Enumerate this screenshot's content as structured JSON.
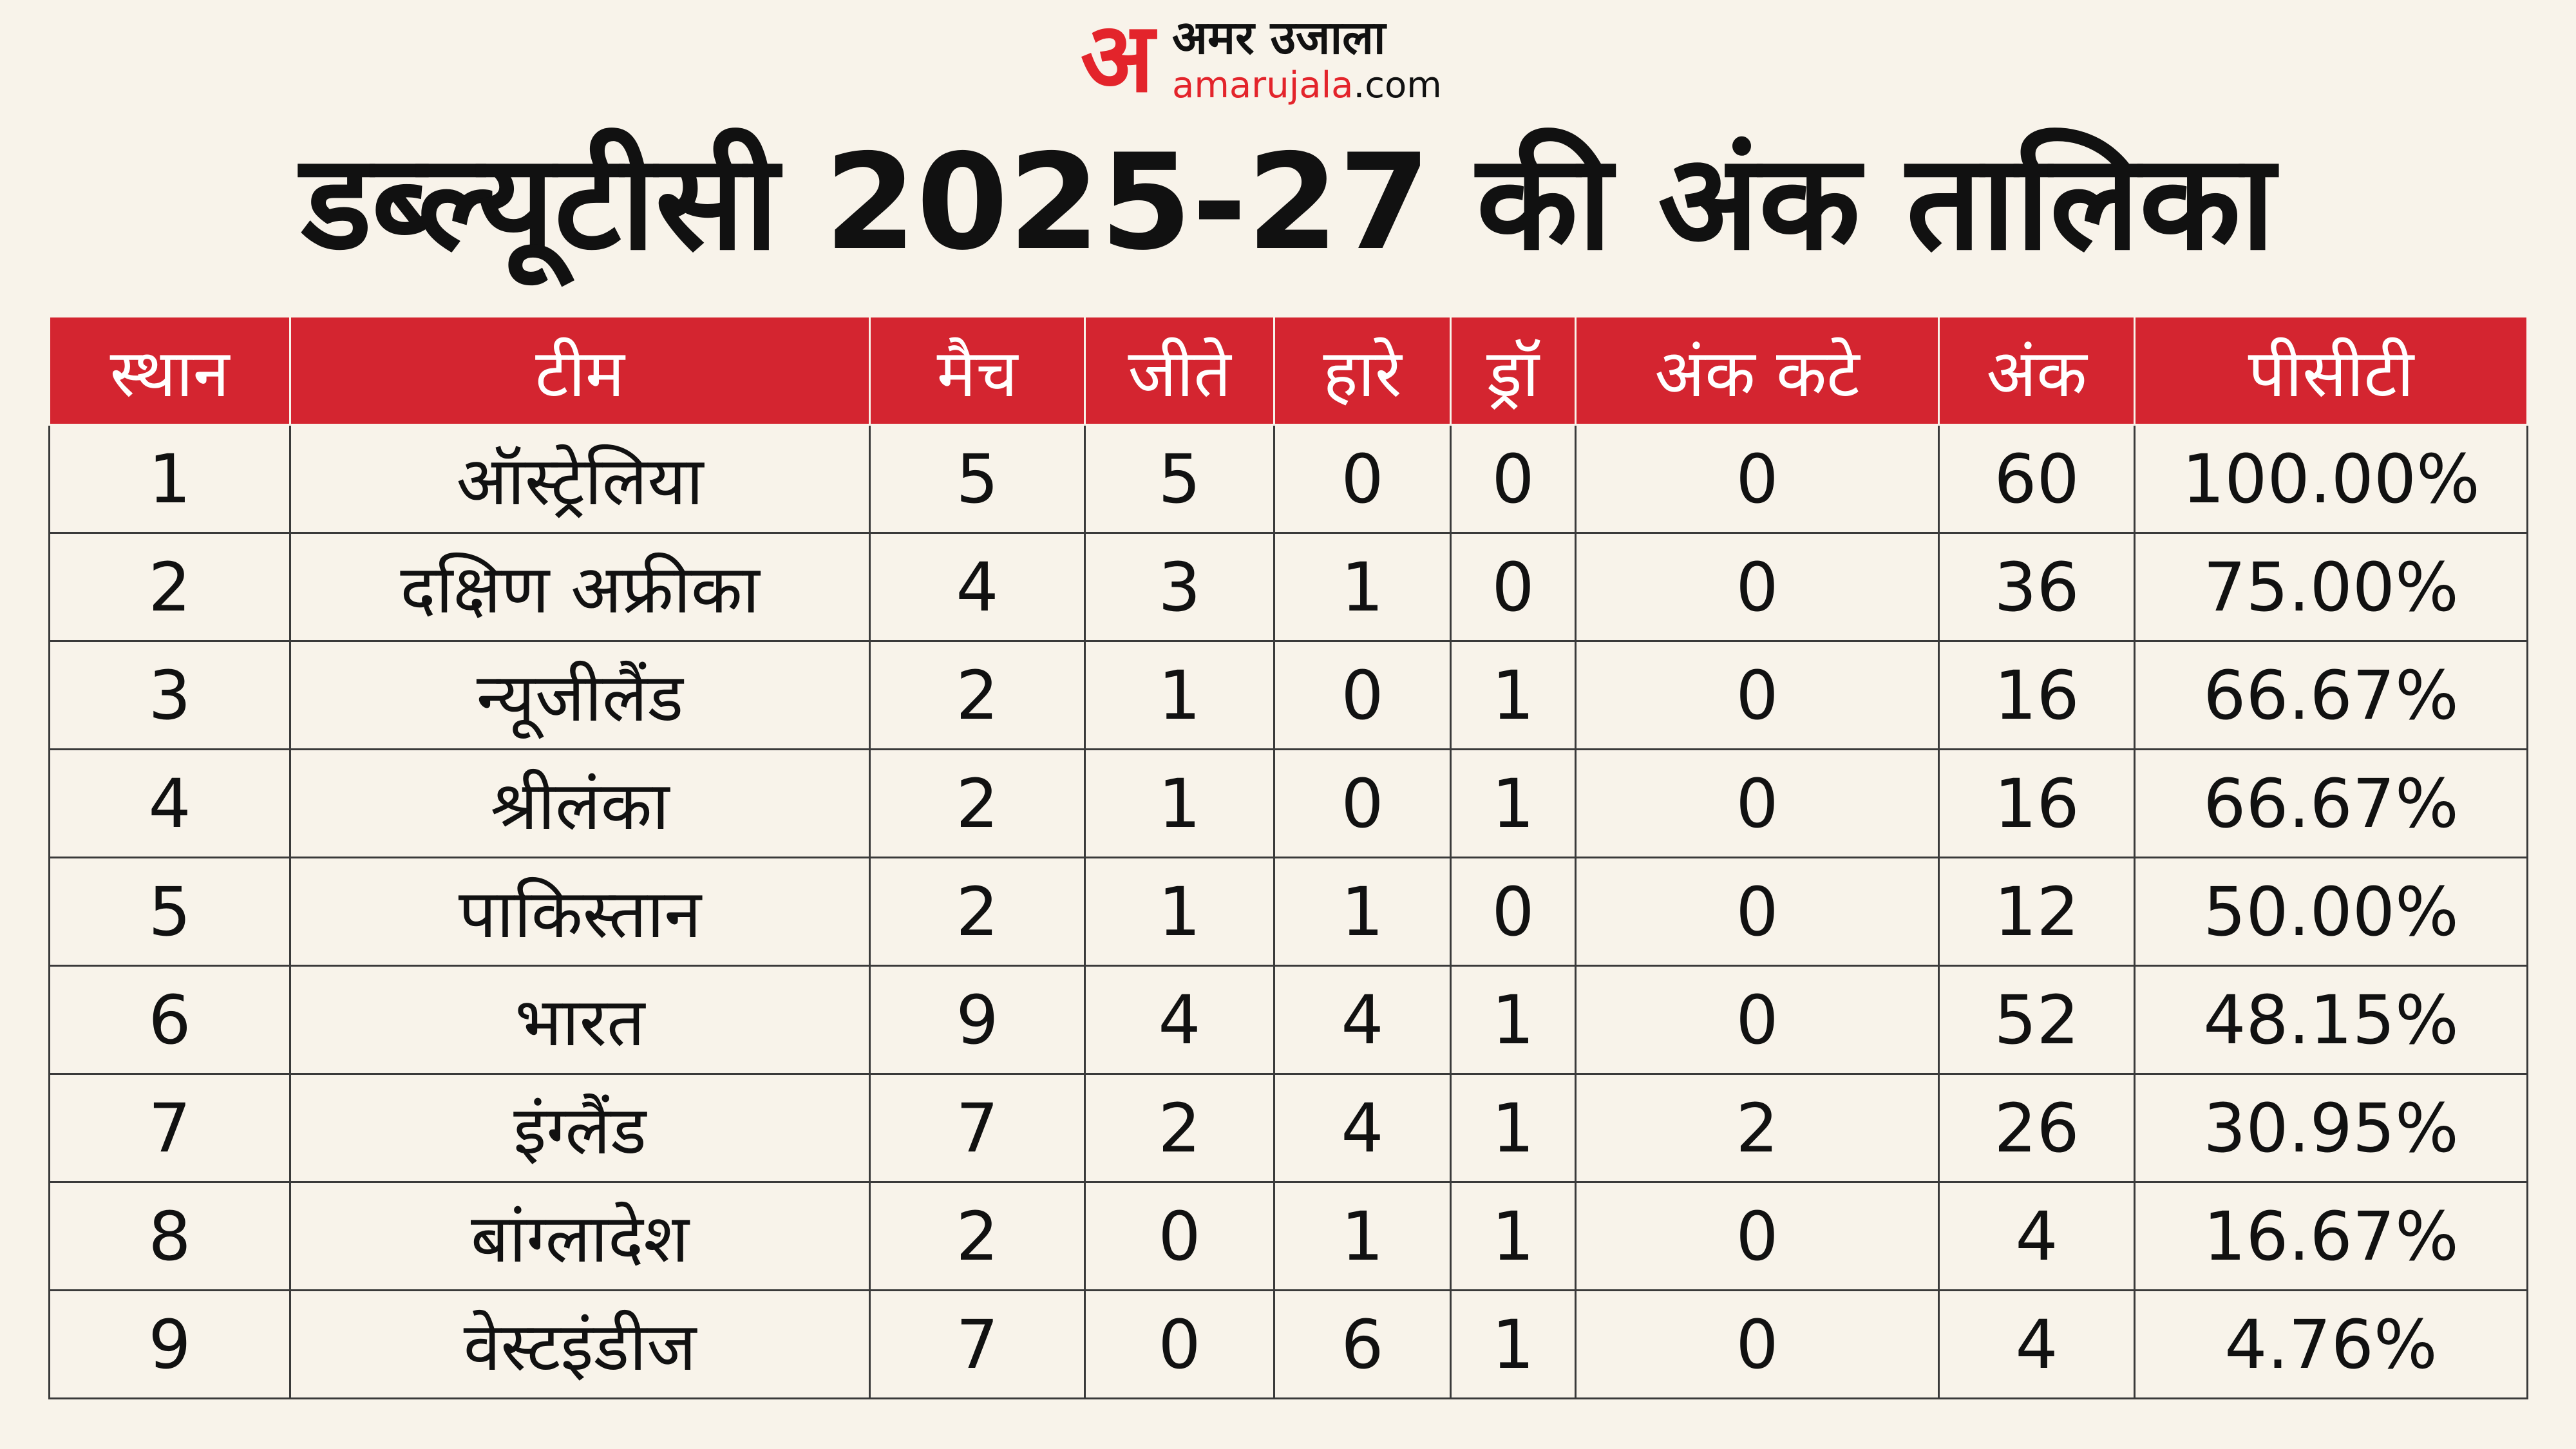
{
  "brand": {
    "logo_mark": "अ",
    "name_hindi": "अमर उजाला",
    "domain_prefix": "amarujala",
    "domain_suffix": ".com",
    "accent_color": "#e3242b"
  },
  "title": "डब्ल्यूटीसी 2025-27 की अंक तालिका",
  "table": {
    "header_color": "#d42530",
    "columns": [
      "स्थान",
      "टीम",
      "मैच",
      "जीते",
      "हारे",
      "ड्रॉ",
      "अंक कटे",
      "अंक",
      "पीसीटी"
    ],
    "rows": [
      [
        "1",
        "ऑस्ट्रेलिया",
        "5",
        "5",
        "0",
        "0",
        "0",
        "60",
        "100.00%"
      ],
      [
        "2",
        "दक्षिण अफ्रीका",
        "4",
        "3",
        "1",
        "0",
        "0",
        "36",
        "75.00%"
      ],
      [
        "3",
        "न्यूजीलैंड",
        "2",
        "1",
        "0",
        "1",
        "0",
        "16",
        "66.67%"
      ],
      [
        "4",
        "श्रीलंका",
        "2",
        "1",
        "0",
        "1",
        "0",
        "16",
        "66.67%"
      ],
      [
        "5",
        "पाकिस्तान",
        "2",
        "1",
        "1",
        "0",
        "0",
        "12",
        "50.00%"
      ],
      [
        "6",
        "भारत",
        "9",
        "4",
        "4",
        "1",
        "0",
        "52",
        "48.15%"
      ],
      [
        "7",
        "इंग्लैंड",
        "7",
        "2",
        "4",
        "1",
        "2",
        "26",
        "30.95%"
      ],
      [
        "8",
        "बांग्लादेश",
        "2",
        "0",
        "1",
        "1",
        "0",
        "4",
        "16.67%"
      ],
      [
        "9",
        "वेस्टइंडीज",
        "7",
        "0",
        "6",
        "1",
        "0",
        "4",
        "4.76%"
      ]
    ]
  }
}
